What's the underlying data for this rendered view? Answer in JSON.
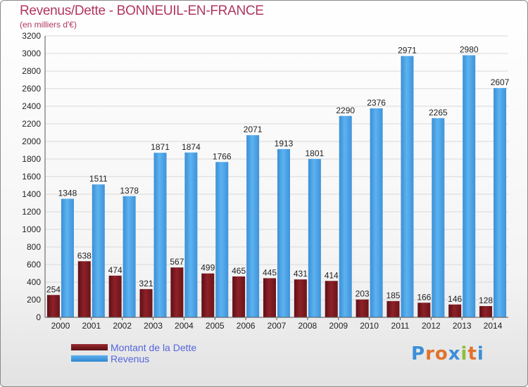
{
  "title": "Revenus/Dette - BONNEUIL-EN-FRANCE",
  "subtitle": "(en milliers d'€)",
  "legend": {
    "dette": "Montant de la Dette",
    "revenus": "Revenus"
  },
  "logo": {
    "text": "Proxiti"
  },
  "colors": {
    "title": "#b03560",
    "legend_text": "#5566dd",
    "dette": "#7a1a20",
    "revenus": "#4aa3e6",
    "grid": "#d9d9d9",
    "axis_text": "#222222"
  },
  "chart_data": {
    "type": "bar",
    "title": "Revenus/Dette - BONNEUIL-EN-FRANCE",
    "ylabel": "(en milliers d'€)",
    "xlabel": "",
    "categories": [
      "2000",
      "2001",
      "2002",
      "2003",
      "2004",
      "2005",
      "2006",
      "2007",
      "2008",
      "2009",
      "2010",
      "2011",
      "2012",
      "2013",
      "2014"
    ],
    "series": [
      {
        "name": "Montant de la Dette",
        "values": [
          254,
          638,
          474,
          321,
          567,
          499,
          465,
          445,
          431,
          414,
          203,
          185,
          166,
          146,
          128
        ]
      },
      {
        "name": "Revenus",
        "values": [
          1348,
          1511,
          1378,
          1871,
          1874,
          1766,
          2071,
          1913,
          1801,
          2290,
          2376,
          2971,
          2265,
          2980,
          2607
        ]
      }
    ],
    "ylim": [
      0,
      3200
    ],
    "yticks": [
      0,
      200,
      400,
      600,
      800,
      1000,
      1200,
      1400,
      1600,
      1800,
      2000,
      2200,
      2400,
      2600,
      2800,
      3000,
      3200
    ],
    "grid": true,
    "legend_position": "bottom-left"
  }
}
